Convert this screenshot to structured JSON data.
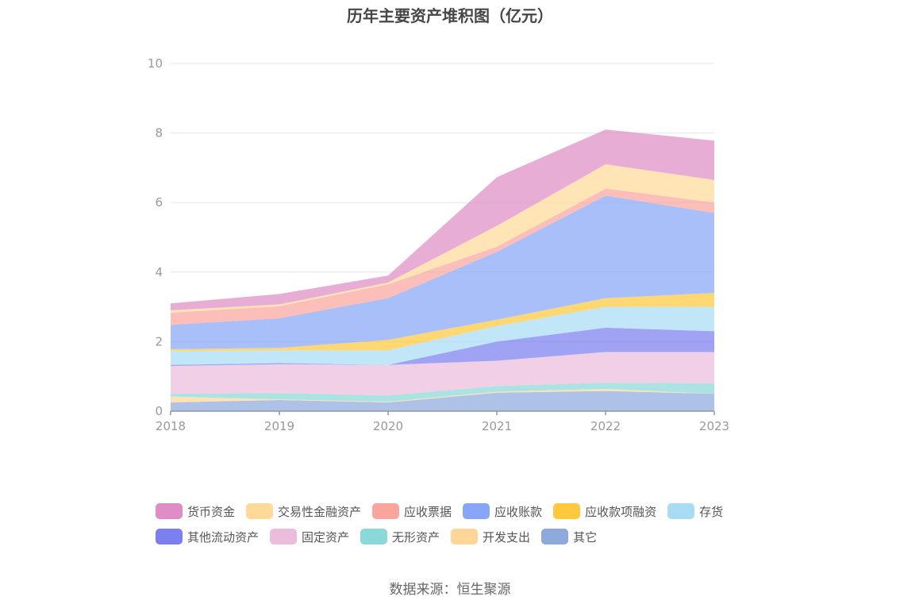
{
  "chart_data": {
    "type": "area",
    "stacked": true,
    "title": "历年主要资产堆积图（亿元）",
    "x": [
      "2018",
      "2019",
      "2020",
      "2021",
      "2022",
      "2023"
    ],
    "ylim": [
      0,
      10
    ],
    "yticks": [
      "0",
      "2",
      "4",
      "6",
      "8",
      "10"
    ],
    "grid": true,
    "legend_position": "bottom",
    "series": [
      {
        "name": "其它",
        "color": "#8eaadc",
        "values": [
          0.25,
          0.32,
          0.25,
          0.53,
          0.58,
          0.5
        ]
      },
      {
        "name": "开发支出",
        "color": "#ffd699",
        "values": [
          0.17,
          0.02,
          0.02,
          0.03,
          0.06,
          0.0
        ]
      },
      {
        "name": "无形资产",
        "color": "#8ad8d8",
        "values": [
          0.08,
          0.18,
          0.18,
          0.16,
          0.18,
          0.3
        ]
      },
      {
        "name": "固定资产",
        "color": "#ecbcdc",
        "values": [
          0.8,
          0.83,
          0.88,
          0.73,
          0.88,
          0.9
        ]
      },
      {
        "name": "其他流动资产",
        "color": "#7b7ff0",
        "values": [
          0.03,
          0.03,
          0.0,
          0.55,
          0.7,
          0.6
        ]
      },
      {
        "name": "存货",
        "color": "#a8dcf5",
        "values": [
          0.4,
          0.37,
          0.42,
          0.45,
          0.6,
          0.7
        ]
      },
      {
        "name": "应收款项融资",
        "color": "#ffc83d",
        "values": [
          0.05,
          0.07,
          0.3,
          0.18,
          0.25,
          0.4
        ]
      },
      {
        "name": "应收账款",
        "color": "#88a6f8",
        "values": [
          0.7,
          0.85,
          1.2,
          1.95,
          2.95,
          2.3
        ]
      },
      {
        "name": "应收票据",
        "color": "#f9a59d",
        "values": [
          0.35,
          0.35,
          0.4,
          0.15,
          0.2,
          0.3
        ]
      },
      {
        "name": "交易性金融资产",
        "color": "#ffd99a",
        "values": [
          0.07,
          0.05,
          0.05,
          0.6,
          0.7,
          0.65
        ]
      },
      {
        "name": "货币资金",
        "color": "#de8ec5",
        "values": [
          0.2,
          0.3,
          0.2,
          1.4,
          1.0,
          1.13
        ]
      }
    ]
  },
  "legend_rows": [
    [
      {
        "label": "货币资金",
        "color": "#de8ec5"
      },
      {
        "label": "交易性金融资产",
        "color": "#ffd99a"
      },
      {
        "label": "应收票据",
        "color": "#f9a59d"
      },
      {
        "label": "应收账款",
        "color": "#88a6f8"
      },
      {
        "label": "应收款项融资",
        "color": "#ffc83d"
      },
      {
        "label": "存货",
        "color": "#a8dcf5"
      }
    ],
    [
      {
        "label": "其他流动资产",
        "color": "#7b7ff0"
      },
      {
        "label": "固定资产",
        "color": "#ecbcdc"
      },
      {
        "label": "无形资产",
        "color": "#8ad8d8"
      },
      {
        "label": "开发支出",
        "color": "#ffd699"
      },
      {
        "label": "其它",
        "color": "#8eaadc"
      }
    ]
  ],
  "footer": {
    "source": "数据来源：恒生聚源"
  }
}
